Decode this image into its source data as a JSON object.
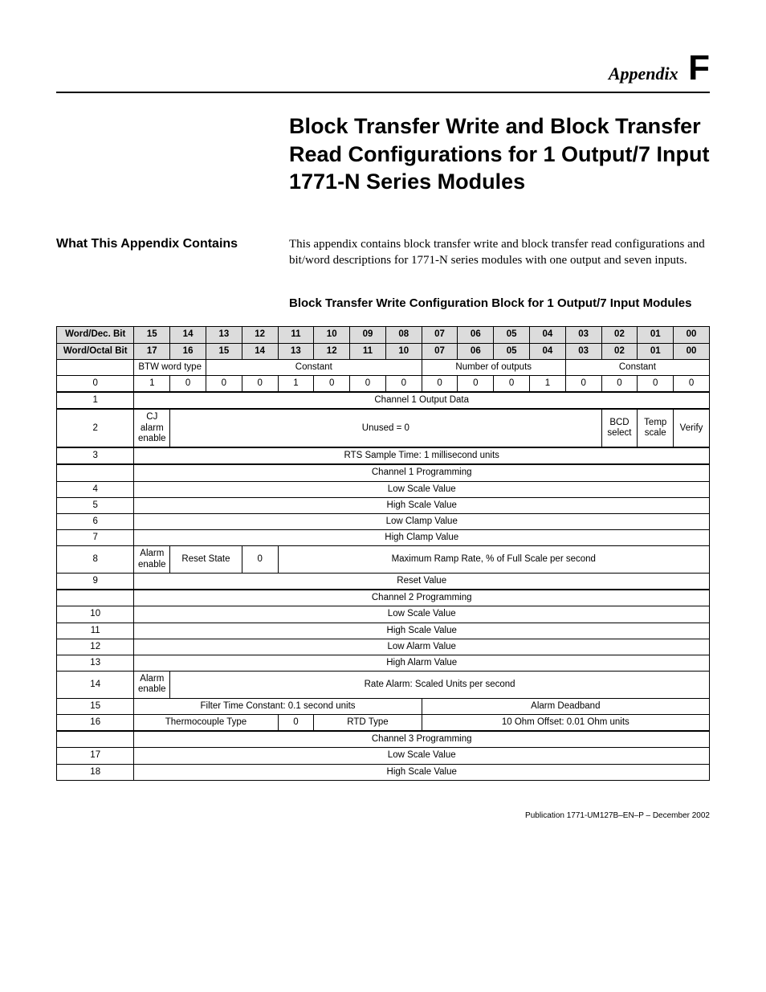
{
  "page": {
    "appendix_label": "Appendix",
    "appendix_letter": "F",
    "title": "Block Transfer Write and Block Transfer Read Configurations for 1 Output/7 Input 1771-N Series Modules",
    "intro_heading": "What This Appendix Contains",
    "intro_body": "This appendix contains block transfer write and block transfer read configurations and bit/word descriptions for 1771-N series modules with one output and seven inputs.",
    "section_title": "Block Transfer Write Configuration Block for 1 Output/7 Input Modules",
    "footer": "Publication 1771-UM127B–EN–P – December 2002"
  },
  "table": {
    "header_color": "#dcdcdc",
    "border_color": "#000000",
    "font_size": 11.5,
    "dec_row": {
      "label": "Word/Dec. Bit",
      "bits": [
        "15",
        "14",
        "13",
        "12",
        "11",
        "10",
        "09",
        "08",
        "07",
        "06",
        "05",
        "04",
        "03",
        "02",
        "01",
        "00"
      ]
    },
    "oct_row": {
      "label": "Word/Octal Bit",
      "bits": [
        "17",
        "16",
        "15",
        "14",
        "13",
        "12",
        "11",
        "10",
        "07",
        "06",
        "05",
        "04",
        "03",
        "02",
        "01",
        "00"
      ]
    },
    "rows": [
      {
        "id": "labelrow0",
        "word": "",
        "spans": [
          {
            "text": "BTW word type",
            "cols": 2
          },
          {
            "text": "Constant",
            "cols": 6
          },
          {
            "text": "Number of outputs",
            "cols": 4
          },
          {
            "text": "Constant",
            "cols": 4
          }
        ],
        "heavy": false
      },
      {
        "id": "w0",
        "word": "0",
        "spans": [
          {
            "text": "1",
            "cols": 1
          },
          {
            "text": "0",
            "cols": 1
          },
          {
            "text": "0",
            "cols": 1
          },
          {
            "text": "0",
            "cols": 1
          },
          {
            "text": "1",
            "cols": 1
          },
          {
            "text": "0",
            "cols": 1
          },
          {
            "text": "0",
            "cols": 1
          },
          {
            "text": "0",
            "cols": 1
          },
          {
            "text": "0",
            "cols": 1
          },
          {
            "text": "0",
            "cols": 1
          },
          {
            "text": "0",
            "cols": 1
          },
          {
            "text": "1",
            "cols": 1
          },
          {
            "text": "0",
            "cols": 1
          },
          {
            "text": "0",
            "cols": 1
          },
          {
            "text": "0",
            "cols": 1
          },
          {
            "text": "0",
            "cols": 1
          }
        ],
        "heavy": false
      },
      {
        "id": "w1",
        "word": "1",
        "spans": [
          {
            "text": "Channel 1 Output Data",
            "cols": 16
          }
        ],
        "heavy": true
      },
      {
        "id": "w2",
        "word": "2",
        "spans": [
          {
            "text": "CJ alarm enable",
            "cols": 1
          },
          {
            "text": "Unused = 0",
            "cols": 12
          },
          {
            "text": "BCD select",
            "cols": 1
          },
          {
            "text": "Temp scale",
            "cols": 1
          },
          {
            "text": "Verify",
            "cols": 1
          }
        ],
        "heavy": true
      },
      {
        "id": "w3",
        "word": "3",
        "spans": [
          {
            "text": "RTS Sample Time: 1 millisecond units",
            "cols": 16
          }
        ],
        "heavy": true
      },
      {
        "id": "ch1",
        "word": "",
        "spans": [
          {
            "text": "Channel 1 Programming",
            "cols": 16
          }
        ],
        "heavy": true
      },
      {
        "id": "w4",
        "word": "4",
        "spans": [
          {
            "text": "Low Scale Value",
            "cols": 16
          }
        ],
        "heavy": false
      },
      {
        "id": "w5",
        "word": "5",
        "spans": [
          {
            "text": "High Scale Value",
            "cols": 16
          }
        ],
        "heavy": false
      },
      {
        "id": "w6",
        "word": "6",
        "spans": [
          {
            "text": "Low Clamp Value",
            "cols": 16
          }
        ],
        "heavy": false
      },
      {
        "id": "w7",
        "word": "7",
        "spans": [
          {
            "text": "High Clamp Value",
            "cols": 16
          }
        ],
        "heavy": false
      },
      {
        "id": "w8",
        "word": "8",
        "spans": [
          {
            "text": "Alarm enable",
            "cols": 1
          },
          {
            "text": "Reset State",
            "cols": 2
          },
          {
            "text": "0",
            "cols": 1
          },
          {
            "text": "Maximum Ramp Rate, % of Full Scale per second",
            "cols": 12
          }
        ],
        "heavy": false
      },
      {
        "id": "w9",
        "word": "9",
        "spans": [
          {
            "text": "Reset Value",
            "cols": 16
          }
        ],
        "heavy": false
      },
      {
        "id": "ch2",
        "word": "",
        "spans": [
          {
            "text": "Channel 2 Programming",
            "cols": 16
          }
        ],
        "heavy": true
      },
      {
        "id": "w10",
        "word": "10",
        "spans": [
          {
            "text": "Low Scale Value",
            "cols": 16
          }
        ],
        "heavy": false
      },
      {
        "id": "w11",
        "word": "11",
        "spans": [
          {
            "text": "High Scale Value",
            "cols": 16
          }
        ],
        "heavy": false
      },
      {
        "id": "w12",
        "word": "12",
        "spans": [
          {
            "text": "Low Alarm Value",
            "cols": 16
          }
        ],
        "heavy": false
      },
      {
        "id": "w13",
        "word": "13",
        "spans": [
          {
            "text": "High Alarm Value",
            "cols": 16
          }
        ],
        "heavy": false
      },
      {
        "id": "w14",
        "word": "14",
        "spans": [
          {
            "text": "Alarm enable",
            "cols": 1
          },
          {
            "text": "Rate Alarm: Scaled Units per second",
            "cols": 15
          }
        ],
        "heavy": false
      },
      {
        "id": "w15",
        "word": "15",
        "spans": [
          {
            "text": "Filter Time Constant: 0.1 second units",
            "cols": 8
          },
          {
            "text": "Alarm Deadband",
            "cols": 8
          }
        ],
        "heavy": false
      },
      {
        "id": "w16",
        "word": "16",
        "spans": [
          {
            "text": "Thermocouple Type",
            "cols": 4
          },
          {
            "text": "0",
            "cols": 1
          },
          {
            "text": "RTD Type",
            "cols": 3
          },
          {
            "text": "10 Ohm Offset: 0.01 Ohm units",
            "cols": 8
          }
        ],
        "heavy": false
      },
      {
        "id": "ch3",
        "word": "",
        "spans": [
          {
            "text": "Channel 3 Programming",
            "cols": 16
          }
        ],
        "heavy": true
      },
      {
        "id": "w17",
        "word": "17",
        "spans": [
          {
            "text": "Low Scale Value",
            "cols": 16
          }
        ],
        "heavy": false
      },
      {
        "id": "w18",
        "word": "18",
        "spans": [
          {
            "text": "High Scale Value",
            "cols": 16
          }
        ],
        "heavy": false
      }
    ]
  }
}
